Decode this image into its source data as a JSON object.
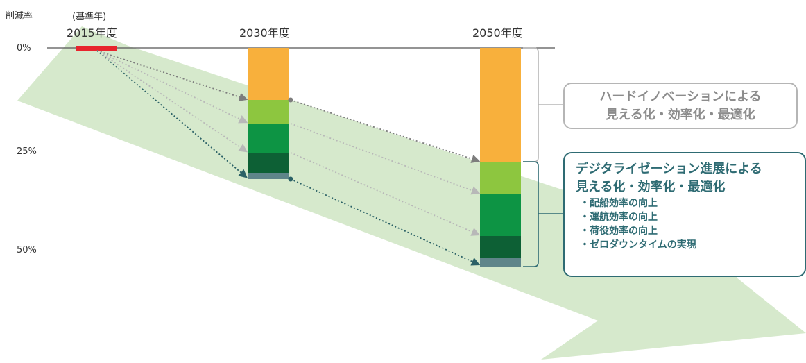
{
  "axis": {
    "ylabel": "削減率",
    "ticks": [
      "0%",
      "25%",
      "50%"
    ]
  },
  "years": {
    "base_note": "(基準年)",
    "y2015": "2015年度",
    "y2030": "2030年度",
    "y2050": "2050年度"
  },
  "callouts": {
    "hard": {
      "line1": "ハードイノベーションによる",
      "line2": "見える化・効率化・最適化"
    },
    "digital": {
      "line1": "デジタライゼーション進展による",
      "line2": "見える化・効率化・最適化",
      "bullets": [
        "・配船効率の向上",
        "・運航効率の向上",
        "・荷役効率の向上",
        "・ゼロダウンタイムの実現"
      ]
    }
  },
  "colors": {
    "orange": "#f8b03c",
    "light_green": "#8dc63f",
    "green": "#0d9444",
    "dark_green": "#0d6035",
    "slate": "#5f858a",
    "baseline_red": "#e8252d",
    "arrow_bg": "#d6e9cc"
  }
}
